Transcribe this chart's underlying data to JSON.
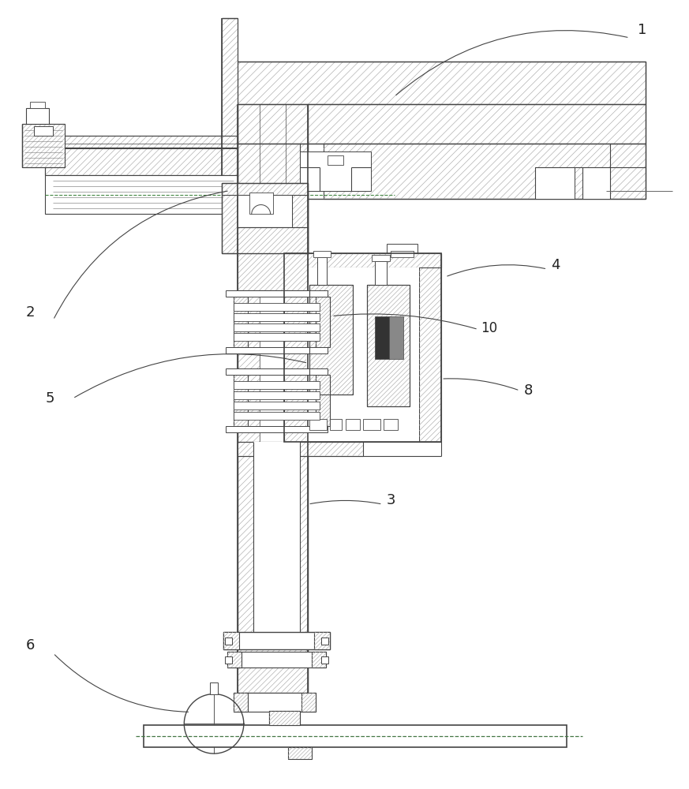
{
  "bg_color": "#ffffff",
  "line_color": "#444444",
  "hatch_color": "#aaaaaa",
  "label_color": "#222222",
  "figsize": [
    8.73,
    10.0
  ],
  "dpi": 100
}
